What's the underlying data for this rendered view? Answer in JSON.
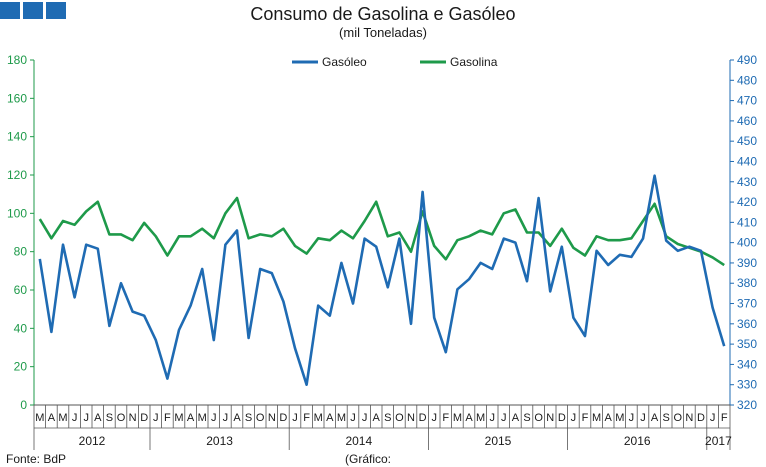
{
  "header": {
    "title": "Consumo de Gasolina e Gasóleo",
    "subtitle": "(mil Toneladas)"
  },
  "footer": {
    "source": "Fonte: BdP",
    "note": "(Gráfico:"
  },
  "colors": {
    "gasoleo": "#1f6bb3",
    "gasolina": "#1e9a4a",
    "logo": "#1f6bb3"
  },
  "chart_data": {
    "type": "line",
    "title": "Consumo de Gasolina e Gasóleo",
    "subtitle": "(mil Toneladas)",
    "months": [
      "M",
      "A",
      "M",
      "J",
      "J",
      "A",
      "S",
      "O",
      "N",
      "D",
      "J",
      "F",
      "M",
      "A",
      "M",
      "J",
      "J",
      "A",
      "S",
      "O",
      "N",
      "D",
      "J",
      "F",
      "M",
      "A",
      "M",
      "J",
      "J",
      "A",
      "S",
      "O",
      "N",
      "D",
      "J",
      "F",
      "M",
      "A",
      "M",
      "J",
      "J",
      "A",
      "S",
      "O",
      "N",
      "D",
      "J",
      "F",
      "M",
      "A",
      "M",
      "J",
      "J",
      "A",
      "S",
      "O",
      "N",
      "D",
      "J",
      "F"
    ],
    "years": [
      {
        "label": "2012",
        "start": 0,
        "end": 9
      },
      {
        "label": "2013",
        "start": 10,
        "end": 21
      },
      {
        "label": "2014",
        "start": 22,
        "end": 33
      },
      {
        "label": "2015",
        "start": 34,
        "end": 45
      },
      {
        "label": "2016",
        "start": 46,
        "end": 57
      },
      {
        "label": "2017",
        "start": 58,
        "end": 59
      }
    ],
    "left_axis": {
      "min": 0,
      "max": 180,
      "step": 20,
      "ticks": [
        "0",
        "20",
        "40",
        "60",
        "80",
        "100",
        "120",
        "140",
        "160",
        "180"
      ]
    },
    "right_axis": {
      "min": 320,
      "max": 490,
      "step": 10,
      "ticks": [
        "320",
        "330",
        "340",
        "350",
        "360",
        "370",
        "380",
        "390",
        "400",
        "410",
        "420",
        "430",
        "440",
        "450",
        "460",
        "470",
        "480",
        "490"
      ]
    },
    "legend": {
      "placement": "top-center"
    },
    "series": [
      {
        "name": "Gasóleo",
        "axis": "right",
        "values": [
          392,
          356,
          399,
          373,
          399,
          397,
          359,
          380,
          366,
          364,
          352,
          333,
          357,
          369,
          387,
          352,
          399,
          406,
          353,
          387,
          385,
          371,
          348,
          330,
          369,
          364,
          390,
          370,
          402,
          398,
          378,
          402,
          360,
          425,
          363,
          346,
          377,
          382,
          390,
          387,
          402,
          400,
          381,
          422,
          376,
          398,
          363,
          354,
          396,
          389,
          394,
          393,
          402,
          433,
          401,
          396,
          398,
          396,
          368,
          349
        ]
      },
      {
        "name": "Gasolina",
        "axis": "left",
        "values": [
          97,
          87,
          96,
          94,
          101,
          106,
          89,
          89,
          86,
          95,
          88,
          78,
          88,
          88,
          92,
          87,
          100,
          108,
          87,
          89,
          88,
          92,
          83,
          79,
          87,
          86,
          91,
          87,
          96,
          106,
          88,
          90,
          80,
          101,
          83,
          76,
          86,
          88,
          91,
          89,
          100,
          102,
          90,
          90,
          83,
          92,
          82,
          78,
          88,
          86,
          86,
          87,
          96,
          105,
          88,
          84,
          82,
          80,
          77,
          73
        ]
      }
    ]
  }
}
